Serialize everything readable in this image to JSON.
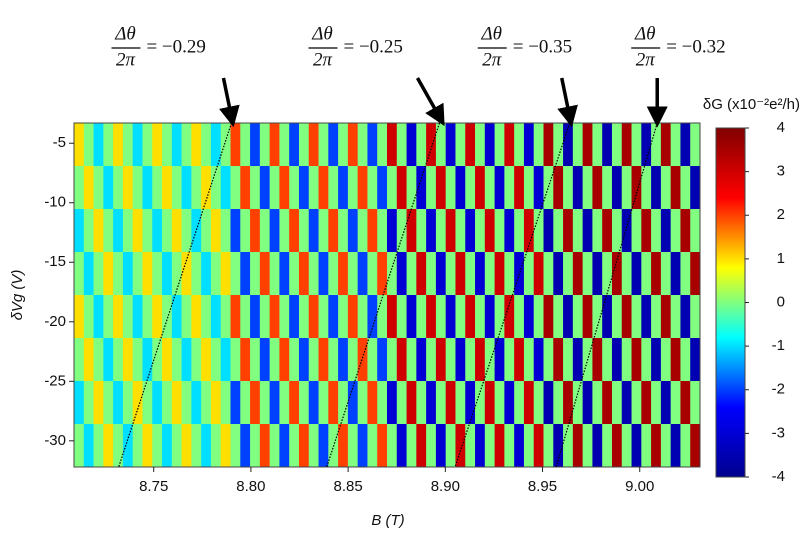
{
  "chart_data": {
    "type": "heatmap",
    "x_label": "B (T)",
    "y_label": "δVg (V)",
    "colorbar_label": "δG (x10⁻²e²/h)",
    "xlim": [
      8.709,
      9.031
    ],
    "ylim": [
      -32.2,
      -3.3
    ],
    "xticks": [
      8.75,
      {
        "value": 8.8,
        "label": "8.80"
      },
      8.85,
      {
        "value": 8.9,
        "label": "8.90"
      },
      8.95,
      {
        "value": 9.0,
        "label": "9.00"
      }
    ],
    "yticks": [
      -5,
      -10,
      -15,
      -20,
      -25,
      -30
    ],
    "zlim": [
      -4,
      4
    ],
    "zticks": [
      4,
      3,
      2,
      1,
      0,
      -1,
      -2,
      -3,
      -4
    ],
    "colormap": [
      "#00008f",
      "#0000ff",
      "#00ffff",
      "#ffff00",
      "#ff0000",
      "#800000"
    ],
    "z": [
      [
        1,
        0,
        -1,
        0,
        1,
        0,
        -1,
        0,
        1,
        0,
        -1,
        0,
        1,
        0,
        -1,
        0,
        2,
        0,
        -2,
        0,
        2,
        0,
        -2,
        0,
        2,
        0,
        -2,
        0,
        2,
        0,
        -2,
        0,
        3,
        0,
        -3,
        0,
        3,
        0,
        -3,
        0,
        3,
        0,
        -3,
        0,
        3,
        0,
        -3,
        0,
        3.5,
        0,
        -3.5,
        0,
        3.5,
        0,
        -3.5,
        0,
        3.5,
        0,
        -3.5,
        0,
        3.5,
        0,
        -3.5,
        0
      ],
      [
        0,
        1,
        0,
        -1,
        0,
        1,
        0,
        -1,
        0,
        1,
        0,
        -1,
        0,
        1,
        0,
        -1,
        0,
        2,
        0,
        -2,
        0,
        2,
        0,
        -2,
        0,
        2,
        0,
        -2,
        0,
        2,
        0,
        -2,
        0,
        3,
        0,
        -3,
        0,
        3,
        0,
        -3,
        0,
        3,
        0,
        -3,
        0,
        3,
        0,
        -3,
        0,
        3.5,
        0,
        -3.5,
        0,
        3.5,
        0,
        -3.5,
        0,
        3.5,
        0,
        -3.5,
        0,
        3.5,
        0,
        -3.5
      ],
      [
        -1,
        0,
        1,
        0,
        -1,
        0,
        1,
        0,
        -1,
        0,
        1,
        0,
        -1,
        0,
        1,
        0,
        -2,
        0,
        2,
        0,
        -2,
        0,
        2,
        0,
        -2,
        0,
        2,
        0,
        -2,
        0,
        2,
        0,
        -3,
        0,
        3,
        0,
        -3,
        0,
        3,
        0,
        -3,
        0,
        3,
        0,
        -3,
        0,
        3,
        0,
        -3.5,
        0,
        3.5,
        0,
        -3.5,
        0,
        3.5,
        0,
        -3.5,
        0,
        3.5,
        0,
        -3.5,
        0,
        3.5,
        0
      ],
      [
        0,
        -1,
        0,
        1,
        0,
        -1,
        0,
        1,
        0,
        -1,
        0,
        1,
        0,
        -1,
        0,
        1,
        0,
        -2,
        0,
        2,
        0,
        -2,
        0,
        2,
        0,
        -2,
        0,
        2,
        0,
        -2,
        0,
        2,
        0,
        -3,
        0,
        3,
        0,
        -3,
        0,
        3,
        0,
        -3,
        0,
        3,
        0,
        -3,
        0,
        3,
        0,
        -3.5,
        0,
        3.5,
        0,
        -3.5,
        0,
        3.5,
        0,
        -3.5,
        0,
        3.5,
        0,
        -3.5,
        0,
        3.5
      ],
      [
        1,
        0,
        -1,
        0,
        1,
        0,
        -1,
        0,
        1,
        0,
        -1,
        0,
        1,
        0,
        -1,
        0,
        2,
        0,
        -2,
        0,
        2,
        0,
        -2,
        0,
        2,
        0,
        -2,
        0,
        2,
        0,
        -2,
        0,
        3,
        0,
        -3,
        0,
        3,
        0,
        -3,
        0,
        3,
        0,
        -3,
        0,
        3,
        0,
        -3,
        0,
        3.5,
        0,
        -3.5,
        0,
        3.5,
        0,
        -3.5,
        0,
        3.5,
        0,
        -3.5,
        0,
        3.5,
        0,
        -3.5,
        0
      ],
      [
        0,
        1,
        0,
        -1,
        0,
        1,
        0,
        -1,
        0,
        1,
        0,
        -1,
        0,
        1,
        0,
        -1,
        0,
        2,
        0,
        -2,
        0,
        2,
        0,
        -2,
        0,
        2,
        0,
        -2,
        0,
        2,
        0,
        -2,
        0,
        3,
        0,
        -3,
        0,
        3,
        0,
        -3,
        0,
        3,
        0,
        -3,
        0,
        3,
        0,
        -3,
        0,
        3.5,
        0,
        -3.5,
        0,
        3.5,
        0,
        -3.5,
        0,
        3.5,
        0,
        -3.5,
        0,
        3.5,
        0,
        -3.5
      ],
      [
        -1,
        0,
        1,
        0,
        -1,
        0,
        1,
        0,
        -1,
        0,
        1,
        0,
        -1,
        0,
        1,
        0,
        -2,
        0,
        2,
        0,
        -2,
        0,
        2,
        0,
        -2,
        0,
        2,
        0,
        -2,
        0,
        2,
        0,
        -3,
        0,
        3,
        0,
        -3,
        0,
        3,
        0,
        -3,
        0,
        3,
        0,
        -3,
        0,
        3,
        0,
        -3.5,
        0,
        3.5,
        0,
        -3.5,
        0,
        3.5,
        0,
        -3.5,
        0,
        3.5,
        0,
        -3.5,
        0,
        3.5,
        0
      ],
      [
        0,
        -1,
        0,
        1,
        0,
        -1,
        0,
        1,
        0,
        -1,
        0,
        1,
        0,
        -1,
        0,
        1,
        0,
        -2,
        0,
        2,
        0,
        -2,
        0,
        2,
        0,
        -2,
        0,
        2,
        0,
        -2,
        0,
        2,
        0,
        -3,
        0,
        3,
        0,
        -3,
        0,
        3,
        0,
        -3,
        0,
        3,
        0,
        -3,
        0,
        3,
        0,
        -3.5,
        0,
        3.5,
        0,
        -3.5,
        0,
        3.5,
        0,
        -3.5,
        0,
        3.5,
        0,
        -3.5,
        0,
        3.5
      ]
    ],
    "annotations": [
      {
        "numerator": "Δθ",
        "denominator": "2π",
        "text": "= −0.29",
        "x": 8.79,
        "x_bottom": 8.732
      },
      {
        "numerator": "Δθ",
        "denominator": "2π",
        "text": "= −0.25",
        "x": 8.897,
        "x_bottom": 8.839
      },
      {
        "numerator": "Δθ",
        "denominator": "2π",
        "text": "= −0.35",
        "x": 8.964,
        "x_bottom": 8.905
      },
      {
        "numerator": "Δθ",
        "denominator": "2π",
        "text": "= −0.32",
        "x": 9.009,
        "x_bottom": 8.957
      }
    ]
  }
}
